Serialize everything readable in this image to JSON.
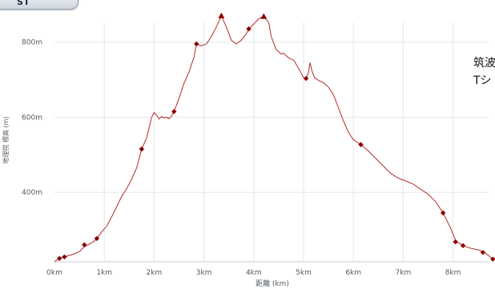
{
  "corner_tab": {
    "label": "ST"
  },
  "side_note": {
    "line1": "筑波",
    "line2": "Tシ"
  },
  "chart_data": {
    "type": "line",
    "xlabel": "距離 (km)",
    "ylabel": "地理院 標高 (m)",
    "xlim": [
      0,
      8.8
    ],
    "ylim": [
      215,
      880
    ],
    "x_ticks": [
      {
        "value": 0,
        "label": "0km"
      },
      {
        "value": 1,
        "label": "1km"
      },
      {
        "value": 2,
        "label": "2km"
      },
      {
        "value": 3,
        "label": "3km"
      },
      {
        "value": 4,
        "label": "4km"
      },
      {
        "value": 5,
        "label": "5km"
      },
      {
        "value": 6,
        "label": "6km"
      },
      {
        "value": 7,
        "label": "7km"
      },
      {
        "value": 8,
        "label": "8km"
      }
    ],
    "y_ticks": [
      {
        "value": 400,
        "label": "400m"
      },
      {
        "value": 600,
        "label": "600m"
      },
      {
        "value": 800,
        "label": "800m"
      }
    ],
    "grid": true,
    "line_color": "#b52a2a",
    "marker_color": "#8b0000",
    "profile": [
      [
        0.0,
        215
      ],
      [
        0.1,
        224
      ],
      [
        0.2,
        228
      ],
      [
        0.3,
        232
      ],
      [
        0.4,
        236
      ],
      [
        0.5,
        242
      ],
      [
        0.6,
        255
      ],
      [
        0.7,
        262
      ],
      [
        0.8,
        270
      ],
      [
        0.85,
        277
      ],
      [
        0.95,
        295
      ],
      [
        1.05,
        310
      ],
      [
        1.15,
        335
      ],
      [
        1.25,
        362
      ],
      [
        1.35,
        390
      ],
      [
        1.45,
        410
      ],
      [
        1.55,
        435
      ],
      [
        1.65,
        465
      ],
      [
        1.75,
        515
      ],
      [
        1.85,
        545
      ],
      [
        1.95,
        600
      ],
      [
        2.0,
        612
      ],
      [
        2.05,
        606
      ],
      [
        2.1,
        595
      ],
      [
        2.15,
        602
      ],
      [
        2.2,
        598
      ],
      [
        2.25,
        600
      ],
      [
        2.3,
        596
      ],
      [
        2.35,
        603
      ],
      [
        2.4,
        615
      ],
      [
        2.5,
        650
      ],
      [
        2.6,
        690
      ],
      [
        2.7,
        720
      ],
      [
        2.8,
        760
      ],
      [
        2.85,
        795
      ],
      [
        2.95,
        790
      ],
      [
        3.05,
        795
      ],
      [
        3.15,
        815
      ],
      [
        3.25,
        840
      ],
      [
        3.35,
        870
      ],
      [
        3.45,
        840
      ],
      [
        3.55,
        805
      ],
      [
        3.65,
        795
      ],
      [
        3.75,
        805
      ],
      [
        3.85,
        822
      ],
      [
        3.9,
        835
      ],
      [
        4.0,
        848
      ],
      [
        4.1,
        862
      ],
      [
        4.2,
        868
      ],
      [
        4.3,
        852
      ],
      [
        4.35,
        815
      ],
      [
        4.45,
        780
      ],
      [
        4.55,
        768
      ],
      [
        4.6,
        770
      ],
      [
        4.7,
        758
      ],
      [
        4.8,
        752
      ],
      [
        4.9,
        730
      ],
      [
        5.0,
        705
      ],
      [
        5.05,
        702
      ],
      [
        5.1,
        720
      ],
      [
        5.13,
        745
      ],
      [
        5.17,
        722
      ],
      [
        5.22,
        705
      ],
      [
        5.3,
        698
      ],
      [
        5.4,
        692
      ],
      [
        5.5,
        680
      ],
      [
        5.6,
        660
      ],
      [
        5.7,
        625
      ],
      [
        5.8,
        590
      ],
      [
        5.9,
        560
      ],
      [
        6.0,
        540
      ],
      [
        6.15,
        527
      ],
      [
        6.3,
        510
      ],
      [
        6.45,
        490
      ],
      [
        6.6,
        470
      ],
      [
        6.75,
        450
      ],
      [
        6.9,
        438
      ],
      [
        7.05,
        430
      ],
      [
        7.2,
        422
      ],
      [
        7.35,
        408
      ],
      [
        7.5,
        395
      ],
      [
        7.65,
        375
      ],
      [
        7.8,
        345
      ],
      [
        7.95,
        305
      ],
      [
        8.05,
        272
      ],
      [
        8.15,
        262
      ],
      [
        8.3,
        253
      ],
      [
        8.45,
        248
      ],
      [
        8.55,
        245
      ],
      [
        8.65,
        238
      ],
      [
        8.8,
        222
      ]
    ],
    "markers": [
      [
        0.1,
        224
      ],
      [
        0.2,
        228
      ],
      [
        0.6,
        260
      ],
      [
        0.85,
        277
      ],
      [
        1.75,
        515
      ],
      [
        2.4,
        615
      ],
      [
        2.85,
        795
      ],
      [
        3.9,
        835
      ],
      [
        5.05,
        703
      ],
      [
        6.15,
        527
      ],
      [
        7.8,
        345
      ],
      [
        8.05,
        268
      ],
      [
        8.2,
        258
      ],
      [
        8.6,
        240
      ],
      [
        8.8,
        222
      ]
    ],
    "peaks": [
      [
        3.35,
        870
      ],
      [
        4.2,
        868
      ]
    ]
  }
}
